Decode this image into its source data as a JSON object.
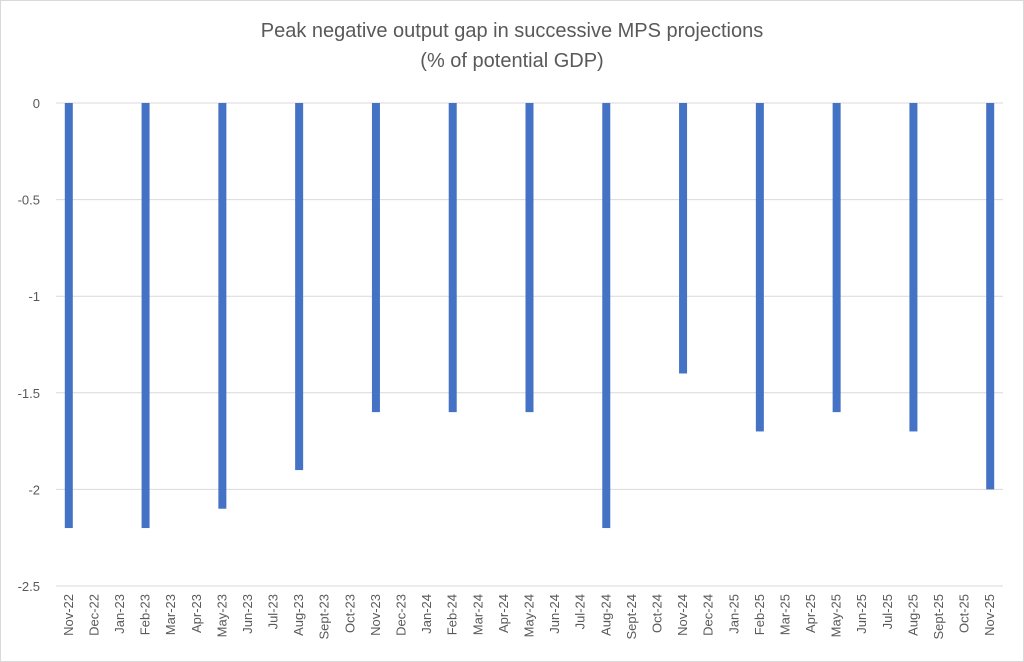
{
  "chart_data": {
    "type": "bar",
    "title": "Peak negative output gap in successive MPS projections",
    "subtitle": "(% of potential GDP)",
    "xlabel": "",
    "ylabel": "",
    "ylim": [
      -2.5,
      0
    ],
    "yticks": [
      0,
      -0.5,
      -1,
      -1.5,
      -2,
      -2.5
    ],
    "ytick_labels": [
      "0",
      "-0.5",
      "-1",
      "-1.5",
      "-2",
      "-2.5"
    ],
    "grid": true,
    "legend": "none",
    "bar_color": "#4472c4",
    "categories": [
      "Nov-22",
      "Dec-22",
      "Jan-23",
      "Feb-23",
      "Mar-23",
      "Apr-23",
      "May-23",
      "Jun-23",
      "Jul-23",
      "Aug-23",
      "Sept-23",
      "Oct-23",
      "Nov-23",
      "Dec-23",
      "Jan-24",
      "Feb-24",
      "Mar-24",
      "Apr-24",
      "May-24",
      "Jun-24",
      "Jul-24",
      "Aug-24",
      "Sept-24",
      "Oct-24",
      "Nov-24",
      "Dec-24",
      "Jan-25",
      "Feb-25",
      "Mar-25",
      "Apr-25",
      "May-25",
      "Jun-25",
      "Jul-25",
      "Aug-25",
      "Sept-25",
      "Oct-25",
      "Nov-25"
    ],
    "values": [
      -2.2,
      null,
      null,
      -2.2,
      null,
      null,
      -2.1,
      null,
      null,
      -1.9,
      null,
      null,
      -1.6,
      null,
      null,
      -1.6,
      null,
      null,
      -1.6,
      null,
      null,
      -2.2,
      null,
      null,
      -1.4,
      null,
      null,
      -1.7,
      null,
      null,
      -1.6,
      null,
      null,
      -1.7,
      null,
      null,
      -2.0
    ]
  }
}
